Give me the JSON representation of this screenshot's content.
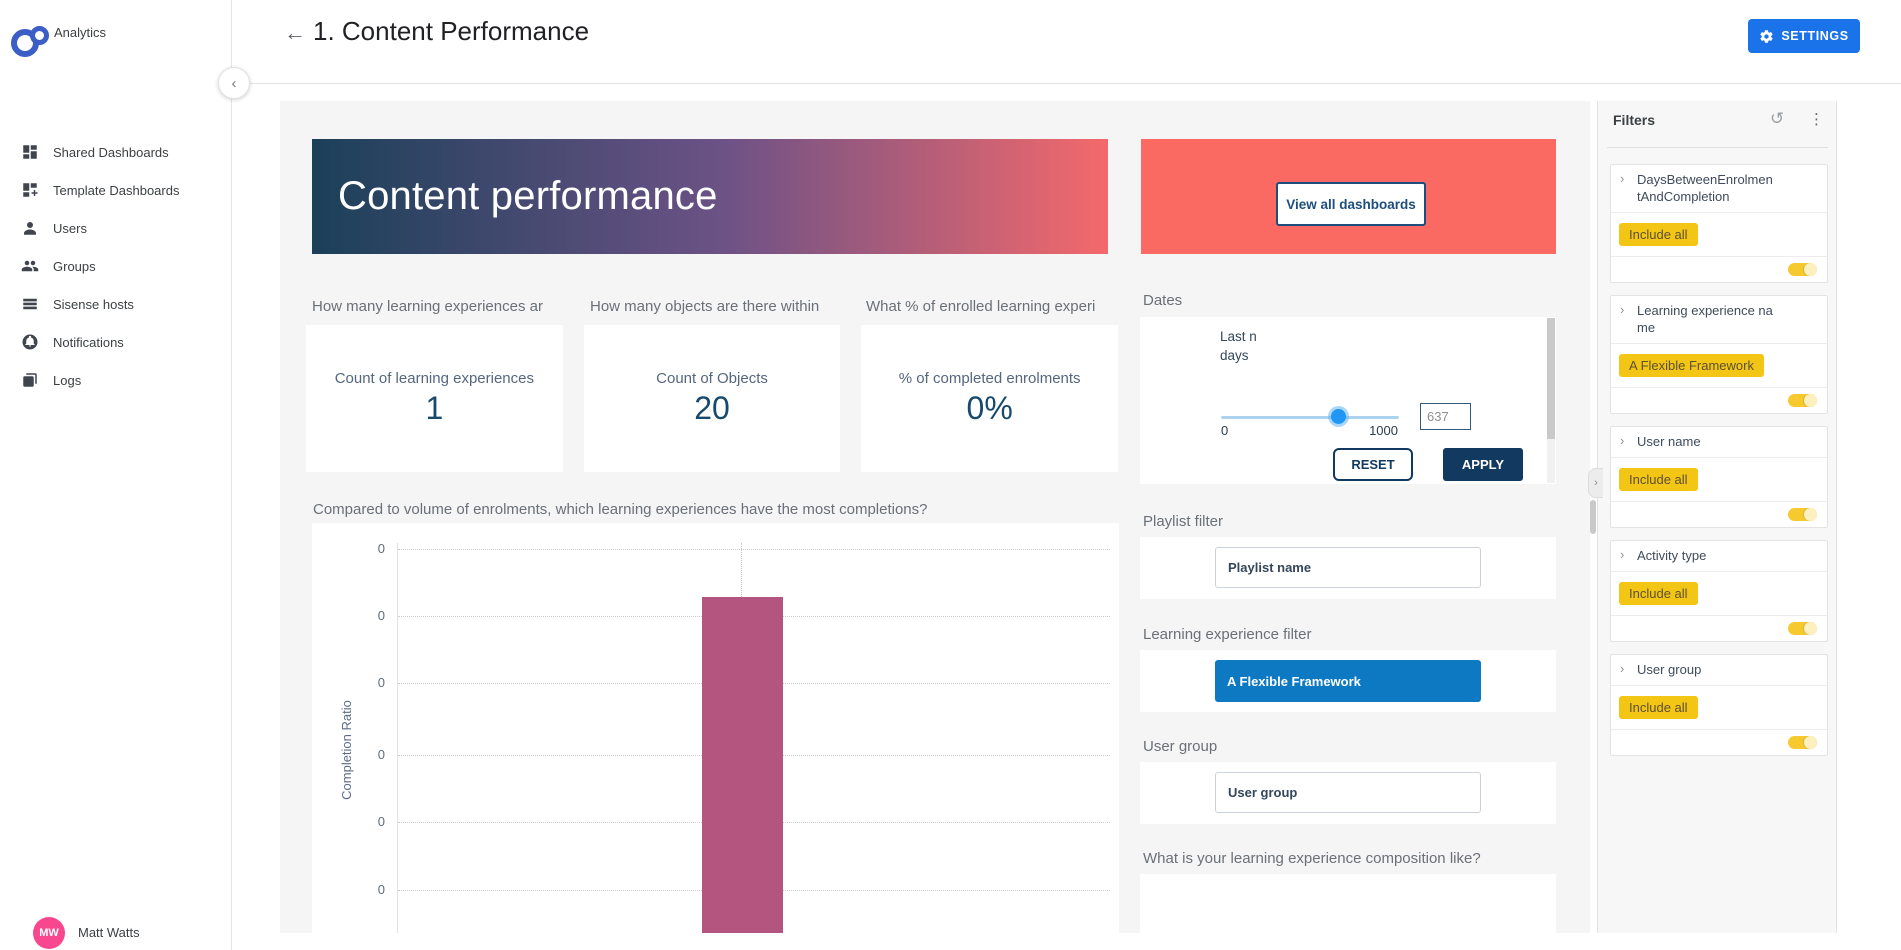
{
  "app": {
    "logo_label": "Analytics"
  },
  "sidebar": {
    "items": [
      {
        "label": "Shared Dashboards",
        "icon": "dashboard-grid-icon"
      },
      {
        "label": "Template Dashboards",
        "icon": "dashboard-add-icon"
      },
      {
        "label": "Users",
        "icon": "user-icon"
      },
      {
        "label": "Groups",
        "icon": "users-group-icon"
      },
      {
        "label": "Sisense hosts",
        "icon": "server-list-icon"
      },
      {
        "label": "Notifications",
        "icon": "notification-bell-icon"
      },
      {
        "label": "Logs",
        "icon": "logs-doc-icon"
      }
    ],
    "user": {
      "initials": "MW",
      "name": "Matt Watts"
    }
  },
  "header": {
    "title": "1. Content Performance",
    "settings_label": "SETTINGS"
  },
  "banner": {
    "title": "Content performance",
    "gradient": [
      "#1b4059",
      "#6d5286",
      "#f4696b"
    ]
  },
  "promo": {
    "bg": "#fa6a63",
    "button_label": "View all dashboards"
  },
  "kpis": [
    {
      "question": "How many learning experiences ar",
      "label": "Count of learning experiences",
      "value": "1"
    },
    {
      "question": "How many objects are there within",
      "label": "Count of Objects",
      "value": "20"
    },
    {
      "question": "What % of enrolled learning experi",
      "label": "% of completed enrolments",
      "value": "0%"
    }
  ],
  "dates": {
    "section_title": "Dates",
    "filter_label": "Last n days",
    "slider": {
      "min": "0",
      "max": "1000",
      "value": "637"
    },
    "reset_label": "RESET",
    "apply_label": "APPLY"
  },
  "chart_data": {
    "type": "bar",
    "title": "Compared to volume of enrolments, which learning experiences have the most completions?",
    "ylabel": "Completion Ratio",
    "y_tick_labels": [
      "0",
      "0",
      "0",
      "0",
      "0",
      "0"
    ],
    "x_tick_labels": [],
    "grid": "dotted horizontal",
    "legend": false,
    "series": [
      {
        "name": "Completion Ratio",
        "bar_color": "#b45580",
        "values": [
          0
        ],
        "note": "single bar, top just below first gridline, bottom clipped by viewport; all visible y ticks read 0"
      }
    ]
  },
  "widgets": {
    "playlist": {
      "title": "Playlist filter",
      "value": "Playlist name"
    },
    "learning": {
      "title": "Learning experience filter",
      "button_label": "A Flexible Framework"
    },
    "user_group": {
      "title": "User group",
      "value": "User group"
    },
    "composition": {
      "title": "What is your learning experience composition like?"
    }
  },
  "filters_panel": {
    "title": "Filters",
    "icons": [
      "reset-icon",
      "more-vert-icon"
    ],
    "cards": [
      {
        "name": "DaysBetweenEnrolmentAndCompletion",
        "tag": "Include all",
        "toggle_on": true
      },
      {
        "name": "Learning experience name",
        "tag": "A Flexible Framework",
        "toggle_on": true
      },
      {
        "name": "User name",
        "tag": "Include all",
        "toggle_on": true
      },
      {
        "name": "Activity type",
        "tag": "Include all",
        "toggle_on": true
      },
      {
        "name": "User group",
        "tag": "Include all",
        "toggle_on": true
      }
    ]
  },
  "colors": {
    "accent_blue": "#1a73e8",
    "navy": "#12395f",
    "coral_panel": "#fa6a63",
    "bar": "#b45580",
    "tag_yellow": "#f3c515",
    "filter_button_blue": "#0c79c2",
    "avatar_pink": "#f8478f",
    "logo_blue": "#3b5fc6",
    "slider_blue": "#2196f3",
    "canvas_bg": "#f5f5f6"
  }
}
